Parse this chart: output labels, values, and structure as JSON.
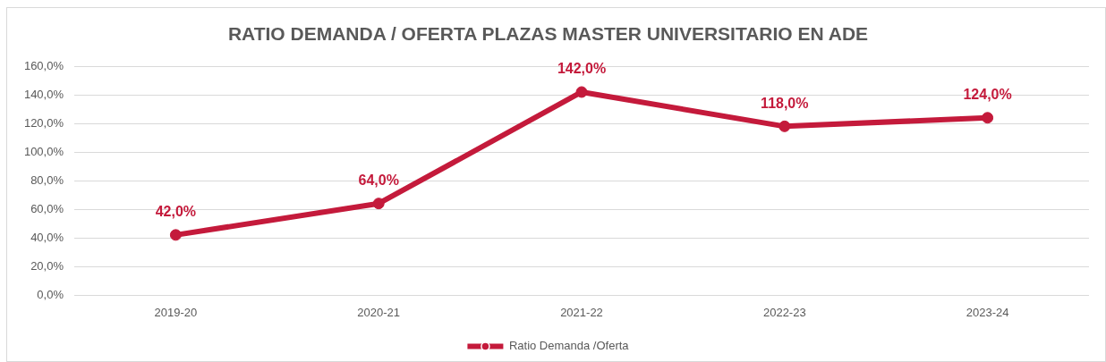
{
  "chart_data": {
    "type": "line",
    "title": "RATIO DEMANDA / OFERTA PLAZAS MASTER UNIVERSITARIO EN ADE",
    "categories": [
      "2019-20",
      "2020-21",
      "2021-22",
      "2022-23",
      "2023-24"
    ],
    "series": [
      {
        "name": "Ratio Demanda /Oferta",
        "color": "#c41a3b",
        "values": [
          42,
          64,
          142,
          118,
          124
        ],
        "value_labels": [
          "42,0%",
          "64,0%",
          "142,0%",
          "118,0%",
          "124,0%"
        ]
      }
    ],
    "ylim": [
      0,
      160
    ],
    "yticks": [
      {
        "value": 0,
        "label": "0,0%"
      },
      {
        "value": 20,
        "label": "20,0%"
      },
      {
        "value": 40,
        "label": "40,0%"
      },
      {
        "value": 60,
        "label": "60,0%"
      },
      {
        "value": 80,
        "label": "80,0%"
      },
      {
        "value": 100,
        "label": "100,0%"
      },
      {
        "value": 120,
        "label": "120,0%"
      },
      {
        "value": 140,
        "label": "140,0%"
      },
      {
        "value": 160,
        "label": "160,0%"
      }
    ],
    "grid": "y",
    "legend": "bottom",
    "marker": "circle",
    "line_style": "solid"
  }
}
